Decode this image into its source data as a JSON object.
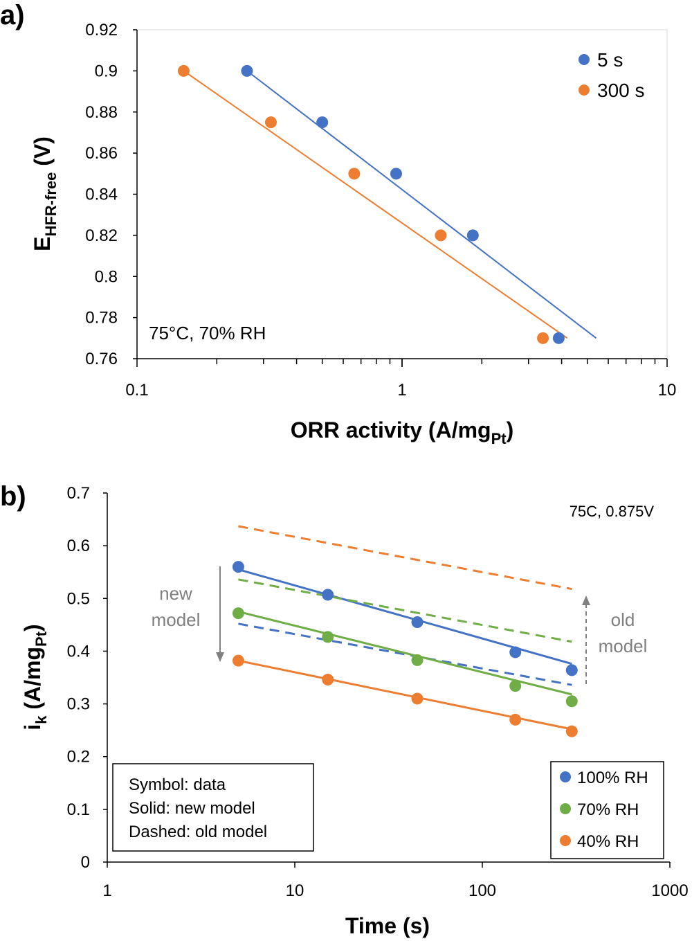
{
  "colors": {
    "blue": "#4472C4",
    "orange": "#ED7D31",
    "green": "#70AD47",
    "grey": "#808080"
  },
  "chart_data": [
    {
      "panel": "a)",
      "type": "scatter",
      "x_scale": "log",
      "xlim": [
        0.1,
        10
      ],
      "ylim": [
        0.76,
        0.92
      ],
      "x_ticks": [
        "0.1",
        "1",
        "10"
      ],
      "y_ticks": [
        "0.76",
        "0.78",
        "0.8",
        "0.82",
        "0.84",
        "0.86",
        "0.88",
        "0.9",
        "0.92"
      ],
      "xlabel": {
        "main": "ORR activity (A/mg",
        "sub": "Pt",
        "end": ")"
      },
      "ylabel": {
        "main": "E",
        "sub": "HFR-free",
        "end": " (V)"
      },
      "annotation": "75°C, 70% RH",
      "legend_position": "top-right",
      "grid": false,
      "series": [
        {
          "name": "5 s",
          "color": "#4472C4",
          "points": [
            [
              0.26,
              0.9
            ],
            [
              0.5,
              0.875
            ],
            [
              0.95,
              0.85
            ],
            [
              1.85,
              0.82
            ],
            [
              3.9,
              0.77
            ]
          ],
          "fit": [
            [
              0.26,
              0.9
            ],
            [
              5.4,
              0.77
            ]
          ]
        },
        {
          "name": "300 s",
          "color": "#ED7D31",
          "points": [
            [
              0.15,
              0.9
            ],
            [
              0.32,
              0.875
            ],
            [
              0.66,
              0.85
            ],
            [
              1.4,
              0.82
            ],
            [
              3.4,
              0.77
            ]
          ],
          "fit": [
            [
              0.15,
              0.9
            ],
            [
              4.2,
              0.77
            ]
          ]
        }
      ]
    },
    {
      "panel": "b)",
      "type": "scatter",
      "x_scale": "log",
      "xlim": [
        1,
        1000
      ],
      "ylim": [
        0,
        0.7
      ],
      "x_ticks": [
        "1",
        "10",
        "100",
        "1000"
      ],
      "y_ticks": [
        "0",
        "0.1",
        "0.2",
        "0.3",
        "0.4",
        "0.5",
        "0.6",
        "0.7"
      ],
      "xlabel": {
        "main": "Time (s)"
      },
      "ylabel": {
        "main": "i",
        "sub": "k",
        "mid": " (A/mg",
        "sub2": "Pt",
        "end": ")"
      },
      "annotation": "75C, 0.875V",
      "notes": [
        "Symbol: data",
        "Solid: new model",
        "Dashed: old model"
      ],
      "arrow_labels": {
        "new": [
          "new",
          "model"
        ],
        "old": [
          "old",
          "model"
        ]
      },
      "legend_position": "bottom-right",
      "grid": false,
      "series": [
        {
          "name": "100% RH",
          "color": "#4472C4",
          "points": [
            [
              5,
              0.56
            ],
            [
              15,
              0.507
            ],
            [
              45,
              0.455
            ],
            [
              150,
              0.398
            ],
            [
              300,
              0.364
            ]
          ],
          "solid": [
            [
              5,
              0.555
            ],
            [
              300,
              0.376
            ]
          ],
          "dashed": [
            [
              5,
              0.452
            ],
            [
              300,
              0.336
            ]
          ]
        },
        {
          "name": "70% RH",
          "color": "#70AD47",
          "points": [
            [
              5,
              0.472
            ],
            [
              15,
              0.427
            ],
            [
              45,
              0.383
            ],
            [
              150,
              0.334
            ],
            [
              300,
              0.305
            ]
          ],
          "solid": [
            [
              5,
              0.475
            ],
            [
              300,
              0.318
            ]
          ],
          "dashed": [
            [
              5,
              0.536
            ],
            [
              300,
              0.418
            ]
          ]
        },
        {
          "name": "40% RH",
          "color": "#ED7D31",
          "points": [
            [
              5,
              0.382
            ],
            [
              15,
              0.346
            ],
            [
              45,
              0.31
            ],
            [
              150,
              0.27
            ],
            [
              300,
              0.248
            ]
          ],
          "solid": [
            [
              5,
              0.382
            ],
            [
              300,
              0.252
            ]
          ],
          "dashed": [
            [
              5,
              0.637
            ],
            [
              300,
              0.518
            ]
          ]
        }
      ]
    }
  ]
}
